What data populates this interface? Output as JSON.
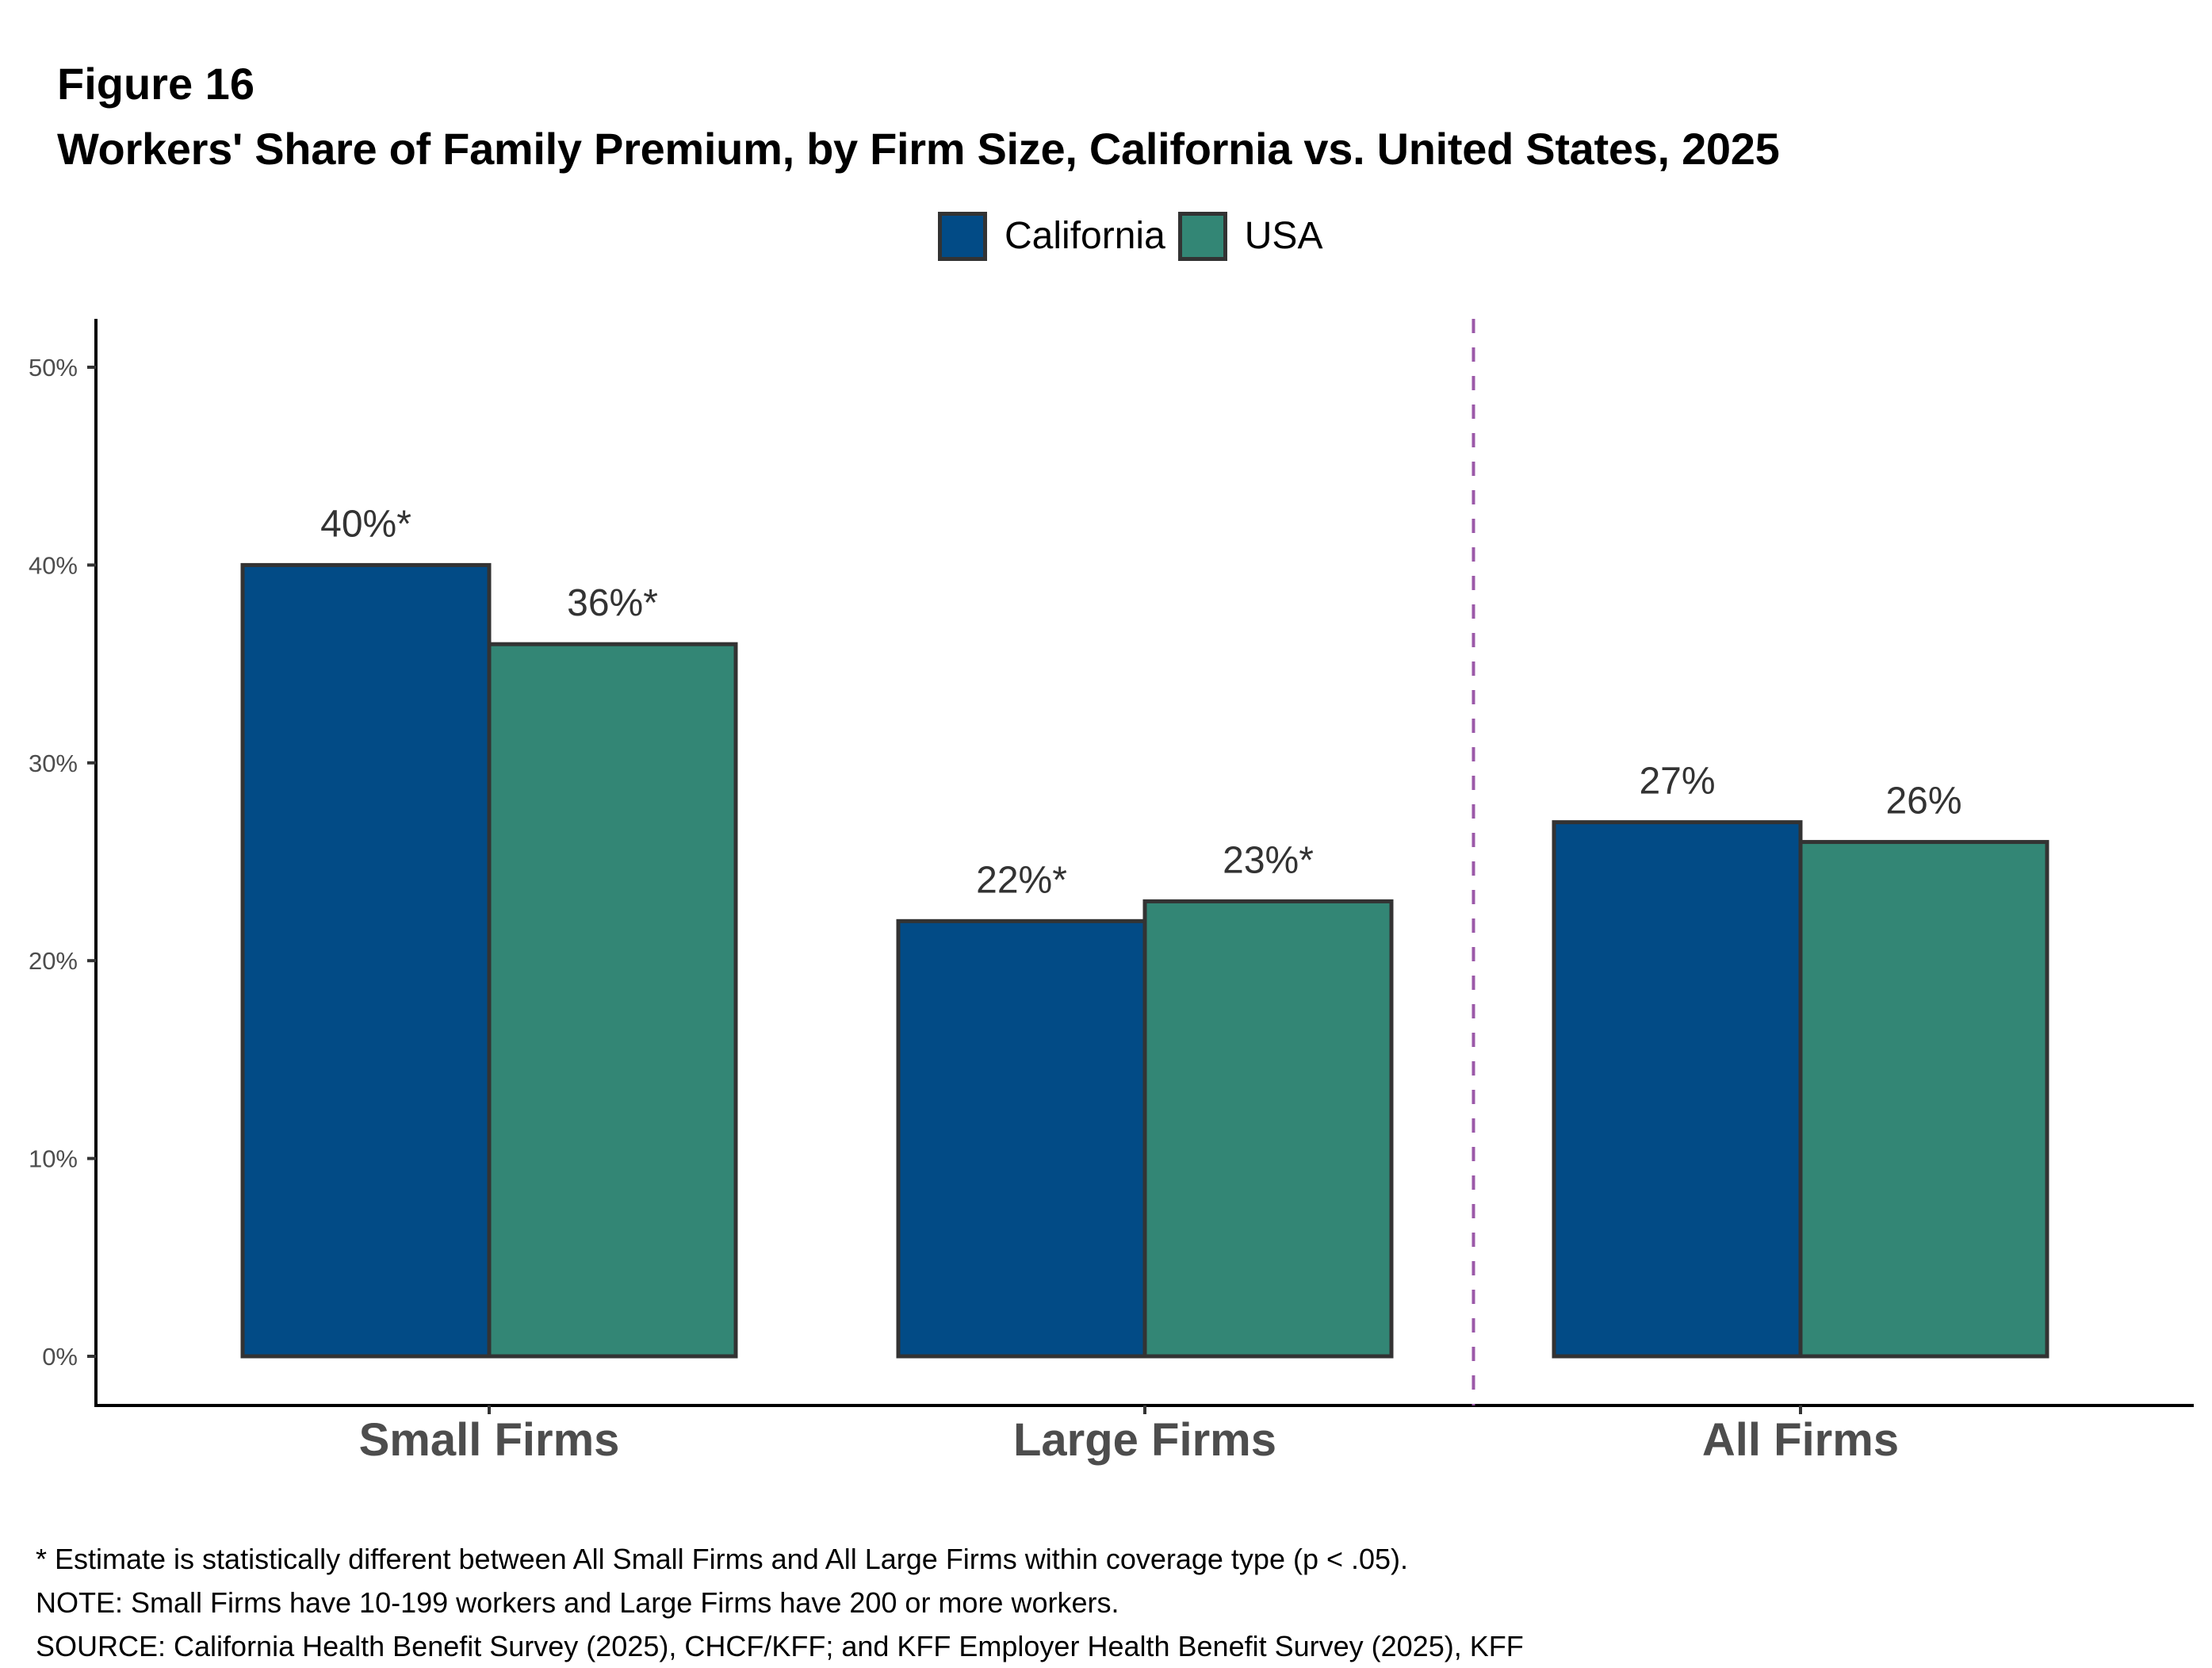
{
  "figure_number": "Figure 16",
  "chart_data": {
    "type": "bar",
    "title": "Workers' Share of Family Premium, by Firm Size, California vs. United States, 2025",
    "xlabel": "",
    "ylabel": "",
    "categories": [
      "Small Firms",
      "Large Firms",
      "All Firms"
    ],
    "series": [
      {
        "name": "California",
        "color": "#024B86",
        "values": [
          40,
          22,
          27
        ],
        "labels": [
          "40%*",
          "22%*",
          "27%"
        ]
      },
      {
        "name": "USA",
        "color": "#338675",
        "values": [
          36,
          23,
          26
        ],
        "labels": [
          "36%*",
          "23%*",
          "26%"
        ]
      }
    ],
    "ylim": [
      0,
      52
    ],
    "yticks": [
      0,
      10,
      20,
      30,
      40,
      50
    ],
    "ytick_labels": [
      "0%",
      "10%",
      "20%",
      "30%",
      "40%",
      "50%"
    ],
    "grid": false,
    "legend_position": "top-center",
    "separator": {
      "style": "dashed",
      "between": [
        "Large Firms",
        "All Firms"
      ],
      "color": "#9B59A8"
    },
    "bar_outline_color": "#333333"
  },
  "footnotes": [
    "* Estimate is statistically different between All Small Firms and All Large Firms within coverage type (p < .05).",
    "NOTE: Small Firms have 10-199 workers and Large Firms have 200 or more workers.",
    "SOURCE: California Health Benefit Survey (2025), CHCF/KFF; and KFF Employer Health Benefit Survey (2025), KFF"
  ]
}
